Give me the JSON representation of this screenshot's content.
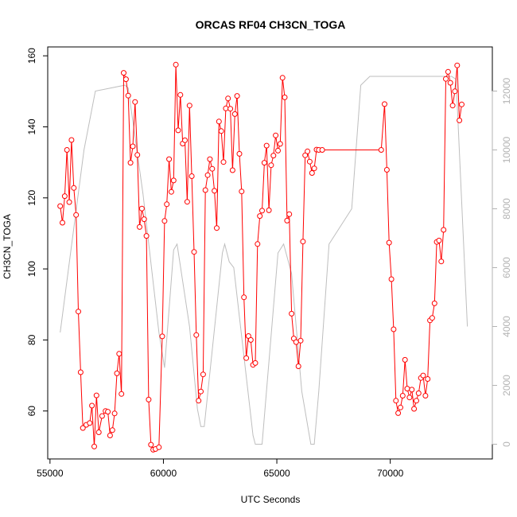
{
  "chart_data": {
    "type": "line",
    "title": "ORCAS RF04 CH3CN_TOGA",
    "xlabel": "UTC Seconds",
    "ylabel": "CH3CN_TOGA",
    "xlim": [
      54900,
      74500
    ],
    "ylim": [
      46.5,
      162.5
    ],
    "y2lim": [
      -500,
      13500
    ],
    "x_ticks": [
      55000,
      60000,
      65000,
      70000
    ],
    "y_ticks": [
      60,
      80,
      100,
      120,
      140,
      160
    ],
    "y2_ticks": [
      0,
      2000,
      4000,
      6000,
      8000,
      10000,
      12000
    ],
    "grid": false,
    "colors": {
      "series": "#ff0000",
      "altitude": "#bebebe",
      "axis": "#000000",
      "right_axis": "#b3b3b3"
    },
    "series": [
      {
        "values": [
          [
            55450,
            117.7
          ],
          [
            55550,
            113.0
          ],
          [
            55650,
            120.5
          ],
          [
            55750,
            133.5
          ],
          [
            55850,
            118.8
          ],
          [
            55950,
            136.3
          ],
          [
            56050,
            122.8
          ],
          [
            56150,
            115.2
          ],
          [
            56250,
            88.0
          ],
          [
            56350,
            70.9
          ],
          [
            56450,
            55.2
          ],
          [
            56600,
            56.1
          ],
          [
            56750,
            56.6
          ],
          [
            56850,
            61.5
          ],
          [
            56950,
            50.0
          ],
          [
            57050,
            64.4
          ],
          [
            57150,
            54.0
          ],
          [
            57300,
            58.6
          ],
          [
            57450,
            60.0
          ],
          [
            57550,
            59.8
          ],
          [
            57650,
            53.1
          ],
          [
            57750,
            54.6
          ],
          [
            57850,
            59.3
          ],
          [
            57950,
            70.6
          ],
          [
            58050,
            76.1
          ],
          [
            58150,
            64.8
          ],
          [
            58250,
            155.2
          ],
          [
            58350,
            153.4
          ],
          [
            58450,
            148.8
          ],
          [
            58550,
            129.9
          ],
          [
            58650,
            134.5
          ],
          [
            58750,
            147.0
          ],
          [
            58850,
            132.1
          ],
          [
            58950,
            111.8
          ],
          [
            59050,
            117.0
          ],
          [
            59150,
            114.0
          ],
          [
            59250,
            109.3
          ],
          [
            59350,
            63.2
          ],
          [
            59450,
            50.5
          ],
          [
            59550,
            49.1
          ],
          [
            59650,
            49.3
          ],
          [
            59800,
            49.8
          ],
          [
            59950,
            81.0
          ],
          [
            60050,
            113.5
          ],
          [
            60150,
            118.2
          ],
          [
            60250,
            130.9
          ],
          [
            60350,
            121.7
          ],
          [
            60450,
            124.9
          ],
          [
            60550,
            157.5
          ],
          [
            60650,
            139.0
          ],
          [
            60750,
            149.0
          ],
          [
            60850,
            135.3
          ],
          [
            60950,
            136.2
          ],
          [
            61050,
            118.9
          ],
          [
            61150,
            146.0
          ],
          [
            61250,
            126.1
          ],
          [
            61350,
            104.8
          ],
          [
            61450,
            81.4
          ],
          [
            61550,
            62.9
          ],
          [
            61650,
            65.5
          ],
          [
            61750,
            70.3
          ],
          [
            61850,
            122.2
          ],
          [
            61950,
            126.4
          ],
          [
            62050,
            130.9
          ],
          [
            62150,
            128.2
          ],
          [
            62250,
            122.0
          ],
          [
            62350,
            111.5
          ],
          [
            62450,
            141.5
          ],
          [
            62550,
            138.8
          ],
          [
            62650,
            130.1
          ],
          [
            62750,
            145.2
          ],
          [
            62850,
            148.0
          ],
          [
            62950,
            145.1
          ],
          [
            63050,
            127.8
          ],
          [
            63150,
            143.6
          ],
          [
            63250,
            148.7
          ],
          [
            63350,
            132.4
          ],
          [
            63450,
            121.8
          ],
          [
            63550,
            92.0
          ],
          [
            63650,
            74.9
          ],
          [
            63750,
            81.1
          ],
          [
            63850,
            80.0
          ],
          [
            63950,
            73.0
          ],
          [
            64050,
            73.5
          ],
          [
            64150,
            107.0
          ],
          [
            64250,
            114.9
          ],
          [
            64350,
            116.4
          ],
          [
            64450,
            129.9
          ],
          [
            64550,
            134.7
          ],
          [
            64650,
            116.5
          ],
          [
            64750,
            129.2
          ],
          [
            64850,
            131.9
          ],
          [
            64950,
            137.6
          ],
          [
            65050,
            133.3
          ],
          [
            65150,
            135.2
          ],
          [
            65250,
            153.8
          ],
          [
            65350,
            148.3
          ],
          [
            65450,
            113.6
          ],
          [
            65550,
            115.4
          ],
          [
            65650,
            87.4
          ],
          [
            65750,
            80.4
          ],
          [
            65850,
            79.4
          ],
          [
            65950,
            72.6
          ],
          [
            66050,
            79.8
          ],
          [
            66150,
            107.7
          ],
          [
            66250,
            132.0
          ],
          [
            66350,
            133.1
          ],
          [
            66450,
            130.2
          ],
          [
            66550,
            127.0
          ],
          [
            66650,
            128.3
          ],
          [
            66750,
            133.6
          ],
          [
            66850,
            133.5
          ],
          [
            67000,
            133.5
          ],
          [
            69600,
            133.5
          ],
          [
            69750,
            146.4
          ],
          [
            69850,
            127.9
          ],
          [
            69950,
            107.4
          ],
          [
            70050,
            97.1
          ],
          [
            70150,
            83.0
          ],
          [
            70250,
            62.9
          ],
          [
            70350,
            59.4
          ],
          [
            70450,
            61.0
          ],
          [
            70550,
            64.3
          ],
          [
            70650,
            74.4
          ],
          [
            70750,
            66.3
          ],
          [
            70850,
            63.8
          ],
          [
            70950,
            66.0
          ],
          [
            71050,
            60.6
          ],
          [
            71150,
            62.9
          ],
          [
            71250,
            65.0
          ],
          [
            71350,
            69.3
          ],
          [
            71450,
            70.0
          ],
          [
            71550,
            64.3
          ],
          [
            71650,
            69.0
          ],
          [
            71750,
            85.5
          ],
          [
            71850,
            86.2
          ],
          [
            71950,
            90.3
          ],
          [
            72050,
            107.6
          ],
          [
            72150,
            108.0
          ],
          [
            72250,
            102.1
          ],
          [
            72350,
            111.0
          ],
          [
            72450,
            153.5
          ],
          [
            72550,
            155.5
          ],
          [
            72650,
            152.4
          ],
          [
            72750,
            146.0
          ],
          [
            72850,
            150.0
          ],
          [
            72950,
            157.3
          ],
          [
            73050,
            141.8
          ],
          [
            73150,
            146.3
          ]
        ]
      },
      {
        "axis": "right",
        "values": [
          [
            55450,
            3800
          ],
          [
            56500,
            10000
          ],
          [
            57000,
            12000
          ],
          [
            58300,
            12200
          ],
          [
            58450,
            12100
          ],
          [
            59100,
            8500
          ],
          [
            59800,
            3800
          ],
          [
            60050,
            2600
          ],
          [
            60450,
            6600
          ],
          [
            60600,
            6800
          ],
          [
            61150,
            4000
          ],
          [
            61500,
            1200
          ],
          [
            61650,
            600
          ],
          [
            61800,
            600
          ],
          [
            62600,
            6500
          ],
          [
            62700,
            6800
          ],
          [
            62900,
            6200
          ],
          [
            63100,
            6000
          ],
          [
            63950,
            300
          ],
          [
            64050,
            0
          ],
          [
            64350,
            0
          ],
          [
            65050,
            6500
          ],
          [
            65300,
            6800
          ],
          [
            65650,
            5800
          ],
          [
            66100,
            1800
          ],
          [
            66500,
            0
          ],
          [
            66650,
            0
          ],
          [
            66850,
            1800
          ],
          [
            67300,
            6800
          ],
          [
            68300,
            8000
          ],
          [
            68700,
            12200
          ],
          [
            69100,
            12500
          ],
          [
            72700,
            12500
          ],
          [
            72900,
            12400
          ],
          [
            73400,
            4000
          ]
        ]
      }
    ]
  }
}
